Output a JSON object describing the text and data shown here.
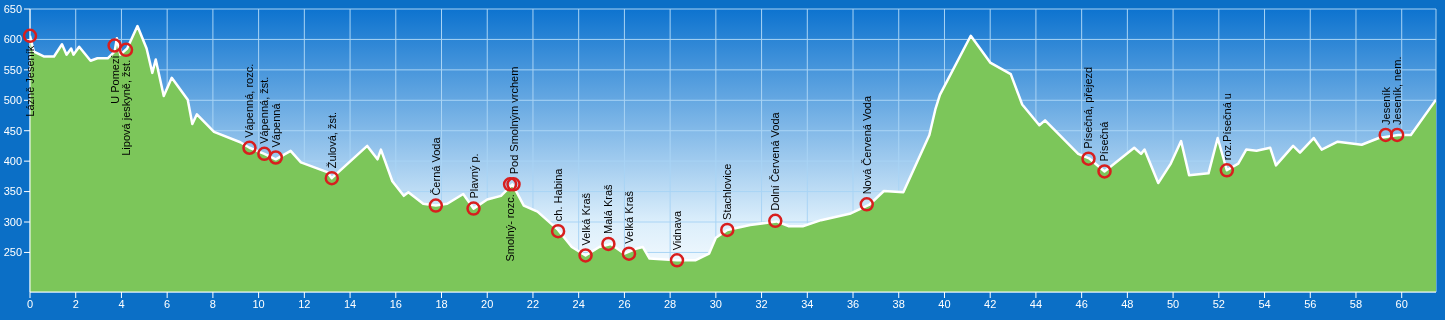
{
  "chart_data": {
    "type": "area",
    "x": [
      0,
      0.17,
      0.6,
      1.05,
      1.4,
      1.6,
      1.8,
      1.9,
      2.15,
      2.65,
      2.95,
      3.4,
      3.7,
      3.8,
      3.95,
      4.25,
      4.7,
      5.1,
      5.35,
      5.5,
      5.85,
      6.2,
      6.9,
      7.1,
      7.3,
      8.05,
      9.2,
      9.6,
      10.25,
      10.75,
      11.4,
      11.85,
      13.0,
      13.2,
      14.75,
      15.2,
      15.35,
      15.85,
      16.35,
      16.55,
      17.2,
      17.75,
      18.25,
      18.95,
      19.4,
      20,
      20.6,
      21.1,
      21.6,
      22.2,
      23.1,
      23.7,
      24.3,
      24.9,
      25.4,
      26.0,
      26.5,
      26.8,
      27.1,
      28.3,
      29.1,
      29.7,
      30.0,
      30.5,
      31.5,
      32.65,
      33.2,
      33.8,
      34.6,
      35.9,
      36.7,
      37.35,
      38.2,
      39.34,
      39.6,
      39.8,
      41.15,
      42.0,
      42.9,
      43.4,
      44.15,
      44.4,
      45.85,
      46.35,
      47.0,
      48.3,
      48.6,
      48.75,
      49.35,
      49.9,
      50.35,
      50.7,
      51.55,
      51.95,
      52.35,
      52.85,
      53.2,
      53.65,
      54.25,
      54.5,
      55.25,
      55.55,
      56.15,
      56.5,
      57.2,
      58.25,
      59.0,
      59.85,
      60.4,
      61.5
    ],
    "series": [
      {
        "color": "#7cc65a",
        "values": [
          606,
          580,
          572,
          572,
          592,
          575,
          585,
          575,
          588,
          565,
          569,
          569,
          580,
          602,
          575,
          585,
          622,
          585,
          545,
          567,
          507,
          537,
          501,
          461,
          477,
          448,
          431,
          422,
          412,
          403,
          417,
          398,
          382,
          372,
          425,
          403,
          419,
          367,
          343,
          349,
          330,
          327,
          330,
          346,
          322,
          337,
          343,
          362,
          327,
          317,
          287,
          259,
          245,
          259,
          264,
          248,
          256,
          259,
          240,
          237,
          237,
          248,
          274,
          287,
          295,
          301,
          293,
          293,
          303,
          314,
          328,
          351,
          349,
          443,
          485,
          509,
          606,
          562,
          543,
          493,
          459,
          467,
          412,
          404,
          383,
          422,
          412,
          419,
          364,
          396,
          433,
          377,
          380,
          438,
          385,
          396,
          419,
          417,
          422,
          393,
          425,
          414,
          438,
          419,
          432,
          427,
          438,
          443,
          443,
          501
        ]
      }
    ],
    "xlim": [
      0,
      61.5
    ],
    "xticks": [
      0,
      2,
      4,
      6,
      8,
      10,
      12,
      14,
      16,
      18,
      20,
      22,
      24,
      26,
      28,
      30,
      32,
      34,
      36,
      38,
      40,
      42,
      44,
      46,
      48,
      50,
      52,
      54,
      56,
      58,
      60
    ],
    "ylim": [
      185,
      650
    ],
    "yticks": [
      250,
      300,
      350,
      400,
      450,
      500,
      550,
      600,
      650
    ],
    "grid": true,
    "legend": false,
    "annotations": [
      {
        "text": "Lázně Jeseník",
        "x": 0,
        "y": 606
      },
      {
        "text": "U Pomezí",
        "x": 3.7,
        "y": 590
      },
      {
        "text": "Lipová jeskyně, žst.",
        "x": 4.2,
        "y": 583
      },
      {
        "text": "Vápenná, rozc.",
        "x": 9.6,
        "y": 422
      },
      {
        "text": "Vápenná, žst.",
        "x": 10.25,
        "y": 412
      },
      {
        "text": "Vápenná",
        "x": 10.75,
        "y": 406
      },
      {
        "text": "Žulová, žst.",
        "x": 13.2,
        "y": 372
      },
      {
        "text": "Černá Voda",
        "x": 17.75,
        "y": 327
      },
      {
        "text": "Plavný p.",
        "x": 19.4,
        "y": 322
      },
      {
        "text": "Smolný- rozc.",
        "x": 21.0,
        "y": 362
      },
      {
        "text": "Pod Smolným vrchem",
        "x": 21.15,
        "y": 362
      },
      {
        "text": "ch. Habina",
        "x": 23.1,
        "y": 285
      },
      {
        "text": "Velká Kraš",
        "x": 24.3,
        "y": 245
      },
      {
        "text": "Malá Kraš",
        "x": 25.3,
        "y": 264
      },
      {
        "text": "Velká Kraš",
        "x": 26.2,
        "y": 248
      },
      {
        "text": "Vidnava",
        "x": 28.3,
        "y": 237
      },
      {
        "text": "Stachlovice",
        "x": 30.5,
        "y": 287
      },
      {
        "text": "Dolní Červená Voda",
        "x": 32.6,
        "y": 302
      },
      {
        "text": "Nová Červená Voda",
        "x": 36.6,
        "y": 329
      },
      {
        "text": "Písečná, přejezd",
        "x": 46.3,
        "y": 404
      },
      {
        "text": "Písečná",
        "x": 47.0,
        "y": 383
      },
      {
        "text": "roz.Písečná u",
        "x": 52.35,
        "y": 385
      },
      {
        "text": "Jeseník",
        "x": 59.3,
        "y": 443
      },
      {
        "text": "Jeseník, nem.",
        "x": 59.8,
        "y": 443
      }
    ]
  }
}
